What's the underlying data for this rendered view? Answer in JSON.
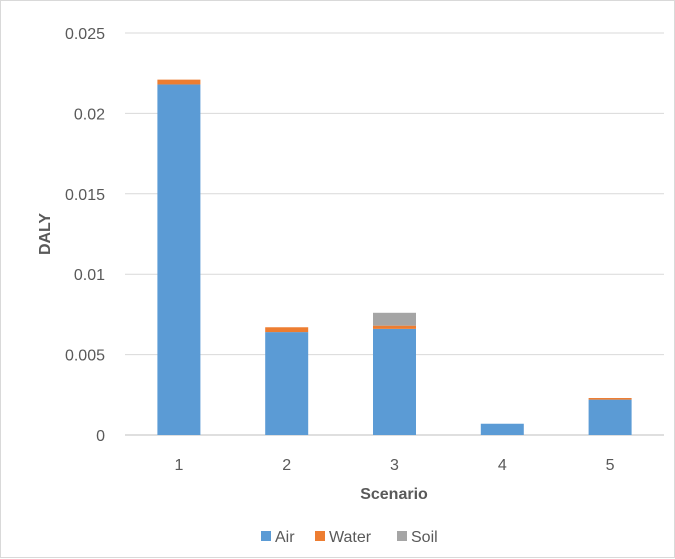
{
  "chart_data": {
    "type": "bar",
    "stacked": true,
    "title": "",
    "xlabel": "Scenario",
    "ylabel": "DALY",
    "categories": [
      "1",
      "2",
      "3",
      "4",
      "5"
    ],
    "series": [
      {
        "name": "Air",
        "color": "#5b9bd5",
        "values": [
          0.0218,
          0.0064,
          0.0066,
          0.0007,
          0.0022
        ]
      },
      {
        "name": "Water",
        "color": "#ed7d31",
        "values": [
          0.0003,
          0.0003,
          0.0002,
          0.0,
          0.0001
        ]
      },
      {
        "name": "Soil",
        "color": "#a5a5a5",
        "values": [
          0.0,
          0.0,
          0.0008,
          0.0,
          0.0
        ]
      }
    ],
    "ylim": [
      0,
      0.025
    ],
    "yticks": [
      "0",
      "0.005",
      "0.01",
      "0.015",
      "0.02",
      "0.025"
    ],
    "ytick_values": [
      0,
      0.005,
      0.01,
      0.015,
      0.02,
      0.025
    ],
    "grid": true,
    "legend": "bottom"
  }
}
